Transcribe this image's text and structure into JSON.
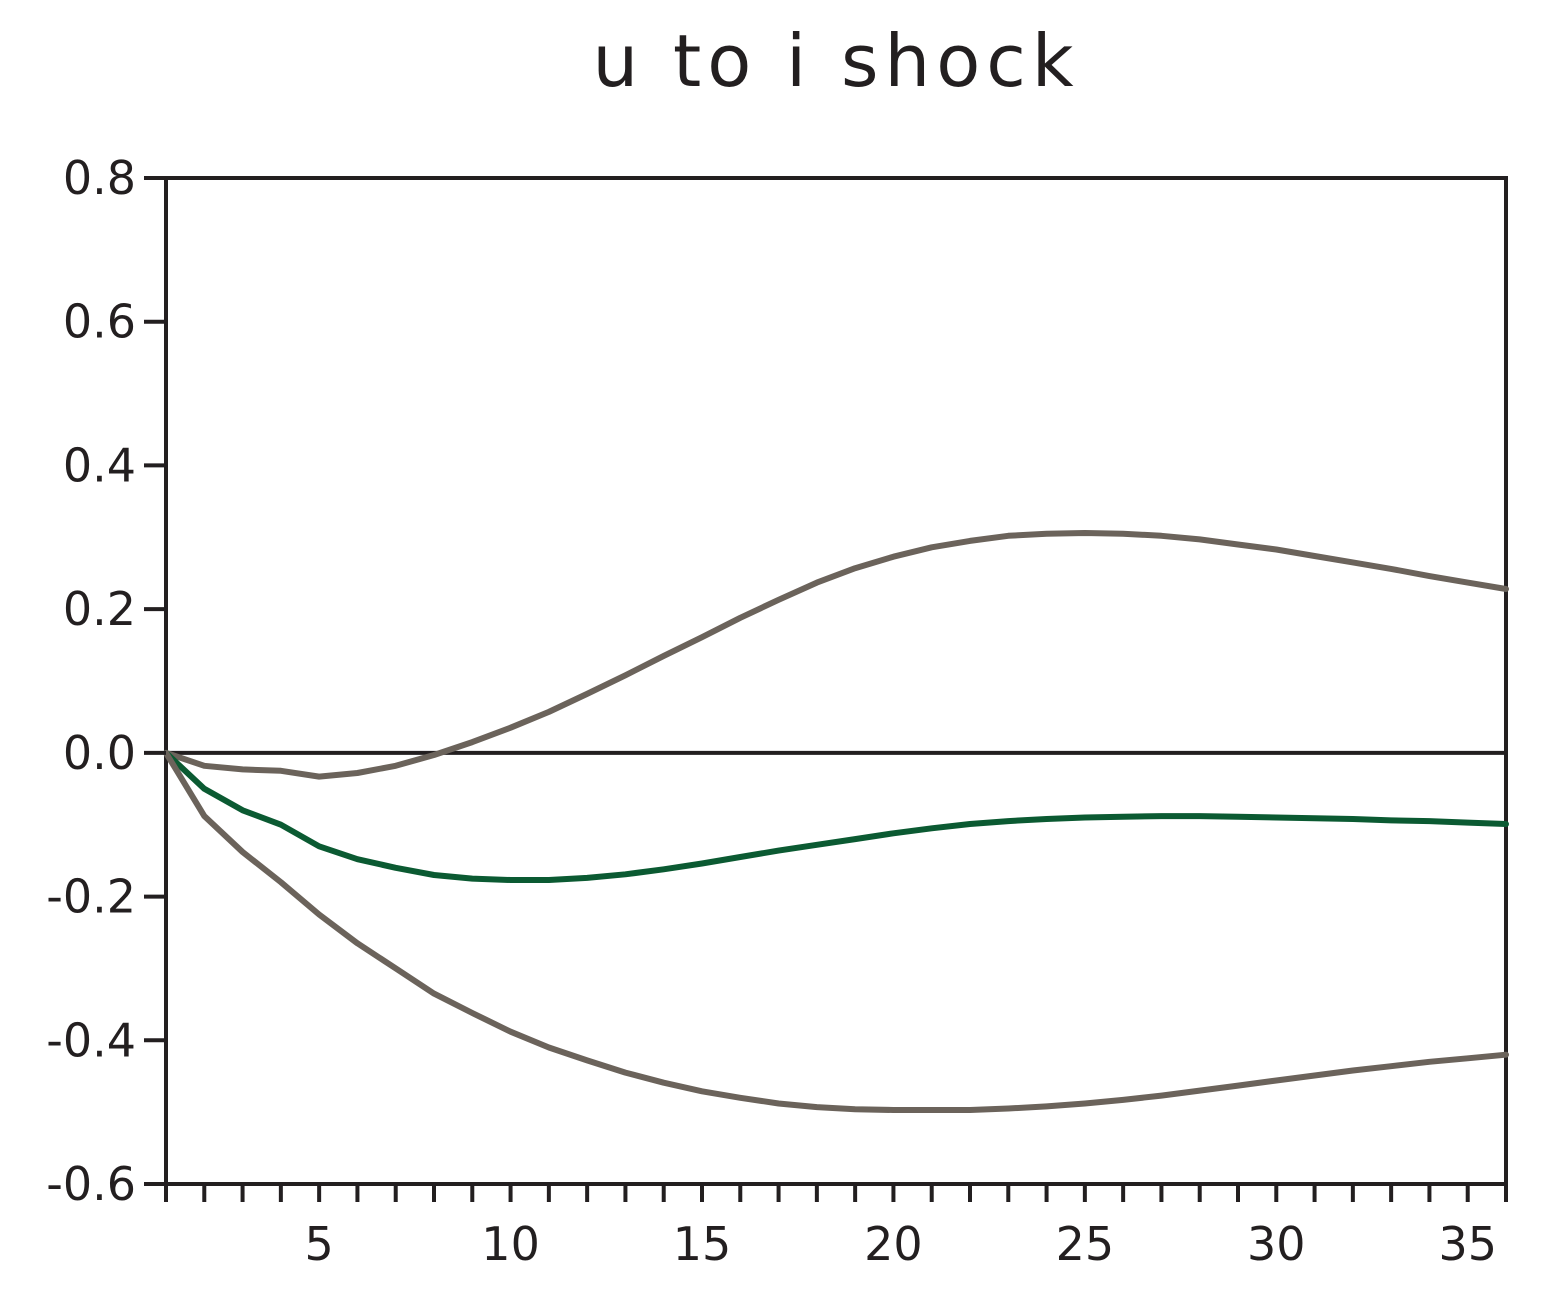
{
  "chart_data": {
    "type": "line",
    "title": "u to i shock",
    "xlabel": "",
    "ylabel": "",
    "xlim": [
      1,
      36
    ],
    "ylim": [
      -0.6,
      0.8
    ],
    "x_ticks": [
      5,
      10,
      15,
      20,
      25,
      30,
      35
    ],
    "y_ticks": [
      0.8,
      0.6,
      0.4,
      0.2,
      0.0,
      -0.2,
      -0.4,
      -0.6
    ],
    "y_tick_labels": [
      "0.8",
      "0.6",
      "0.4",
      "0.2",
      "0.0",
      "-0.2",
      "-0.4",
      "-0.6"
    ],
    "x_tick_labels": [
      "5",
      "10",
      "15",
      "20",
      "25",
      "30",
      "35"
    ],
    "zero_line": true,
    "grid": false,
    "legend": "none",
    "x": [
      1,
      2,
      3,
      4,
      5,
      6,
      7,
      8,
      9,
      10,
      11,
      12,
      13,
      14,
      15,
      16,
      17,
      18,
      19,
      20,
      21,
      22,
      23,
      24,
      25,
      26,
      27,
      28,
      29,
      30,
      31,
      32,
      33,
      34,
      35,
      36
    ],
    "series": [
      {
        "color": "#6b635b",
        "values": [
          0.0,
          -0.018,
          -0.023,
          -0.025,
          -0.033,
          -0.028,
          -0.018,
          -0.003,
          0.015,
          0.035,
          0.057,
          0.082,
          0.108,
          0.135,
          0.161,
          0.188,
          0.213,
          0.237,
          0.257,
          0.273,
          0.286,
          0.295,
          0.302,
          0.305,
          0.306,
          0.305,
          0.302,
          0.297,
          0.29,
          0.283,
          0.274,
          0.265,
          0.256,
          0.246,
          0.237,
          0.228
        ]
      },
      {
        "color": "#0b5a32",
        "values": [
          0.0,
          -0.05,
          -0.08,
          -0.1,
          -0.13,
          -0.148,
          -0.16,
          -0.17,
          -0.175,
          -0.177,
          -0.177,
          -0.174,
          -0.169,
          -0.162,
          -0.154,
          -0.145,
          -0.136,
          -0.128,
          -0.12,
          -0.112,
          -0.105,
          -0.099,
          -0.095,
          -0.092,
          -0.09,
          -0.089,
          -0.088,
          -0.088,
          -0.089,
          -0.09,
          -0.091,
          -0.092,
          -0.094,
          -0.095,
          -0.097,
          -0.099
        ]
      },
      {
        "color": "#6b635b",
        "values": [
          0.0,
          -0.088,
          -0.138,
          -0.18,
          -0.225,
          -0.265,
          -0.3,
          -0.335,
          -0.362,
          -0.388,
          -0.41,
          -0.428,
          -0.445,
          -0.459,
          -0.471,
          -0.48,
          -0.488,
          -0.493,
          -0.496,
          -0.497,
          -0.497,
          -0.497,
          -0.495,
          -0.492,
          -0.488,
          -0.483,
          -0.477,
          -0.47,
          -0.463,
          -0.456,
          -0.449,
          -0.442,
          -0.436,
          -0.43,
          -0.425,
          -0.42
        ]
      }
    ]
  }
}
